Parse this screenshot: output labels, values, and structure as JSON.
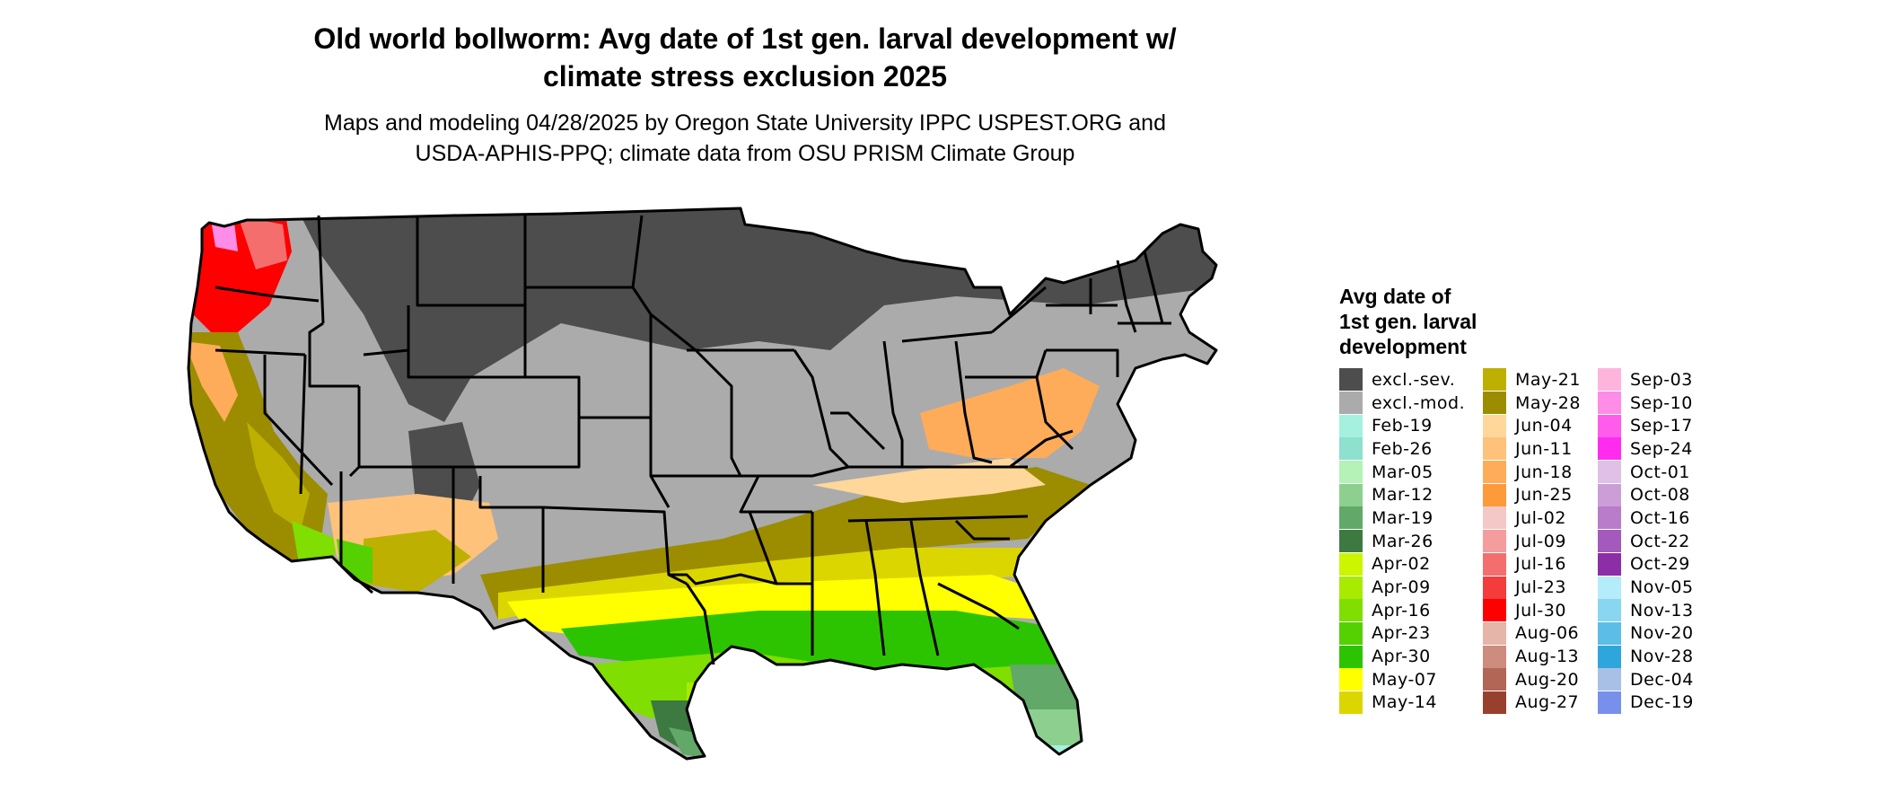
{
  "header": {
    "title": "Old world bollworm: Avg date of 1st gen. larval development w/\nclimate stress exclusion 2025",
    "subtitle": "Maps and modeling 04/28/2025 by Oregon State University IPPC USPEST.ORG and\nUSDA-APHIS-PPQ; climate data from OSU PRISM Climate Group"
  },
  "legend": {
    "title": "Avg date of\n1st gen. larval\ndevelopment",
    "columns": [
      [
        {
          "label": "excl.-sev.",
          "color": "#4d4d4d"
        },
        {
          "label": "excl.-mod.",
          "color": "#ababab"
        },
        {
          "label": "Feb-19",
          "color": "#a6f0e0"
        },
        {
          "label": "Feb-26",
          "color": "#8ee0cf"
        },
        {
          "label": "Mar-05",
          "color": "#b4f2b8"
        },
        {
          "label": "Mar-12",
          "color": "#8ccf8e"
        },
        {
          "label": "Mar-19",
          "color": "#62a868"
        },
        {
          "label": "Mar-26",
          "color": "#3c7a42"
        },
        {
          "label": "Apr-02",
          "color": "#ccf500"
        },
        {
          "label": "Apr-09",
          "color": "#a8eb00"
        },
        {
          "label": "Apr-16",
          "color": "#80de00"
        },
        {
          "label": "Apr-23",
          "color": "#55d000"
        },
        {
          "label": "Apr-30",
          "color": "#2cc400"
        },
        {
          "label": "May-07",
          "color": "#ffff00"
        },
        {
          "label": "May-14",
          "color": "#dcd600"
        }
      ],
      [
        {
          "label": "May-21",
          "color": "#bdb000"
        },
        {
          "label": "May-28",
          "color": "#9c8c00"
        },
        {
          "label": "Jun-04",
          "color": "#ffd79a"
        },
        {
          "label": "Jun-11",
          "color": "#ffc27a"
        },
        {
          "label": "Jun-18",
          "color": "#ffac5a"
        },
        {
          "label": "Jun-25",
          "color": "#ff9a3a"
        },
        {
          "label": "Jul-02",
          "color": "#f5c8c8"
        },
        {
          "label": "Jul-09",
          "color": "#f59c9c"
        },
        {
          "label": "Jul-16",
          "color": "#f56e6e"
        },
        {
          "label": "Jul-23",
          "color": "#f53c3c"
        },
        {
          "label": "Jul-30",
          "color": "#ff0000"
        },
        {
          "label": "Aug-06",
          "color": "#e6b4a8"
        },
        {
          "label": "Aug-13",
          "color": "#cc8c7e"
        },
        {
          "label": "Aug-20",
          "color": "#b26656"
        },
        {
          "label": "Aug-27",
          "color": "#98402e"
        }
      ],
      [
        {
          "label": "Sep-03",
          "color": "#ffb4dc"
        },
        {
          "label": "Sep-10",
          "color": "#ff8ce6"
        },
        {
          "label": "Sep-17",
          "color": "#ff5cec"
        },
        {
          "label": "Sep-24",
          "color": "#ff2cf0"
        },
        {
          "label": "Oct-01",
          "color": "#e0c0e6"
        },
        {
          "label": "Oct-08",
          "color": "#cc9ed8"
        },
        {
          "label": "Oct-16",
          "color": "#b87cca"
        },
        {
          "label": "Oct-22",
          "color": "#a45abc"
        },
        {
          "label": "Oct-29",
          "color": "#8c2ea6"
        },
        {
          "label": "Nov-05",
          "color": "#b4ecfa"
        },
        {
          "label": "Nov-13",
          "color": "#8ad6f0"
        },
        {
          "label": "Nov-20",
          "color": "#5cbde6"
        },
        {
          "label": "Nov-28",
          "color": "#2ea6dc"
        },
        {
          "label": "Dec-04",
          "color": "#a8c0e6"
        },
        {
          "label": "Dec-19",
          "color": "#7890ec"
        }
      ]
    ]
  }
}
